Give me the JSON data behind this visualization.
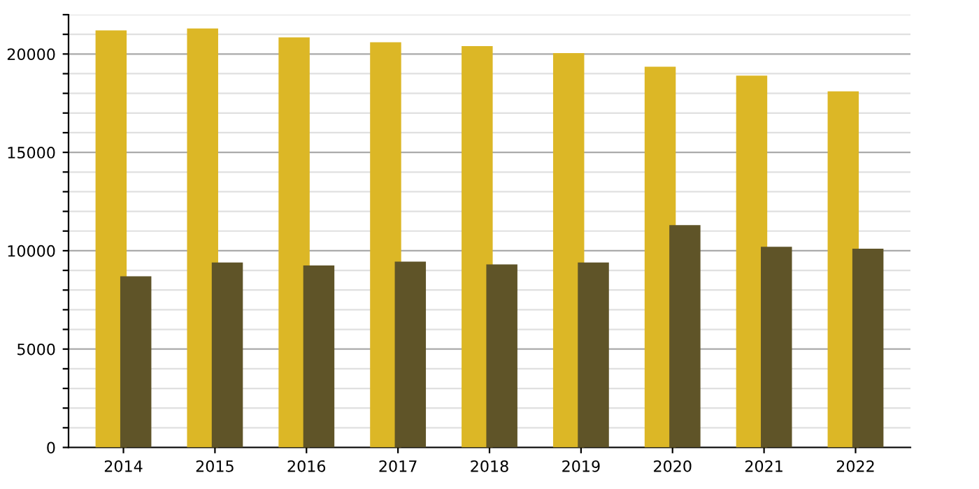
{
  "chart_data": {
    "type": "bar",
    "categories": [
      "2014",
      "2015",
      "2016",
      "2017",
      "2018",
      "2019",
      "2020",
      "2021",
      "2022"
    ],
    "series": [
      {
        "color": "#dcb726",
        "values": [
          21200,
          21300,
          20850,
          20600,
          20400,
          20050,
          19350,
          18900,
          18100
        ]
      },
      {
        "color": "#5f5428",
        "values": [
          8700,
          9400,
          9250,
          9450,
          9300,
          9400,
          11300,
          10200,
          10100
        ]
      }
    ],
    "ylim": [
      0,
      22000
    ],
    "yticks": [
      0,
      {
        "value": 1000,
        "label": null
      },
      {
        "value": 2000,
        "label": null
      },
      {
        "value": 3000,
        "label": null
      },
      {
        "value": 4000,
        "label": null
      },
      5000,
      {
        "value": 6000,
        "label": null
      },
      {
        "value": 7000,
        "label": null
      },
      {
        "value": 8000,
        "label": null
      },
      {
        "value": 9000,
        "label": null
      },
      10000,
      {
        "value": 11000,
        "label": null
      },
      {
        "value": 12000,
        "label": null
      },
      {
        "value": 13000,
        "label": null
      },
      {
        "value": 14000,
        "label": null
      },
      15000,
      {
        "value": 16000,
        "label": null
      },
      {
        "value": 17000,
        "label": null
      },
      {
        "value": 18000,
        "label": null
      },
      {
        "value": 19000,
        "label": null
      },
      20000,
      {
        "value": 21000,
        "label": null
      },
      {
        "value": 22000,
        "label": null
      }
    ],
    "grid": "y"
  }
}
